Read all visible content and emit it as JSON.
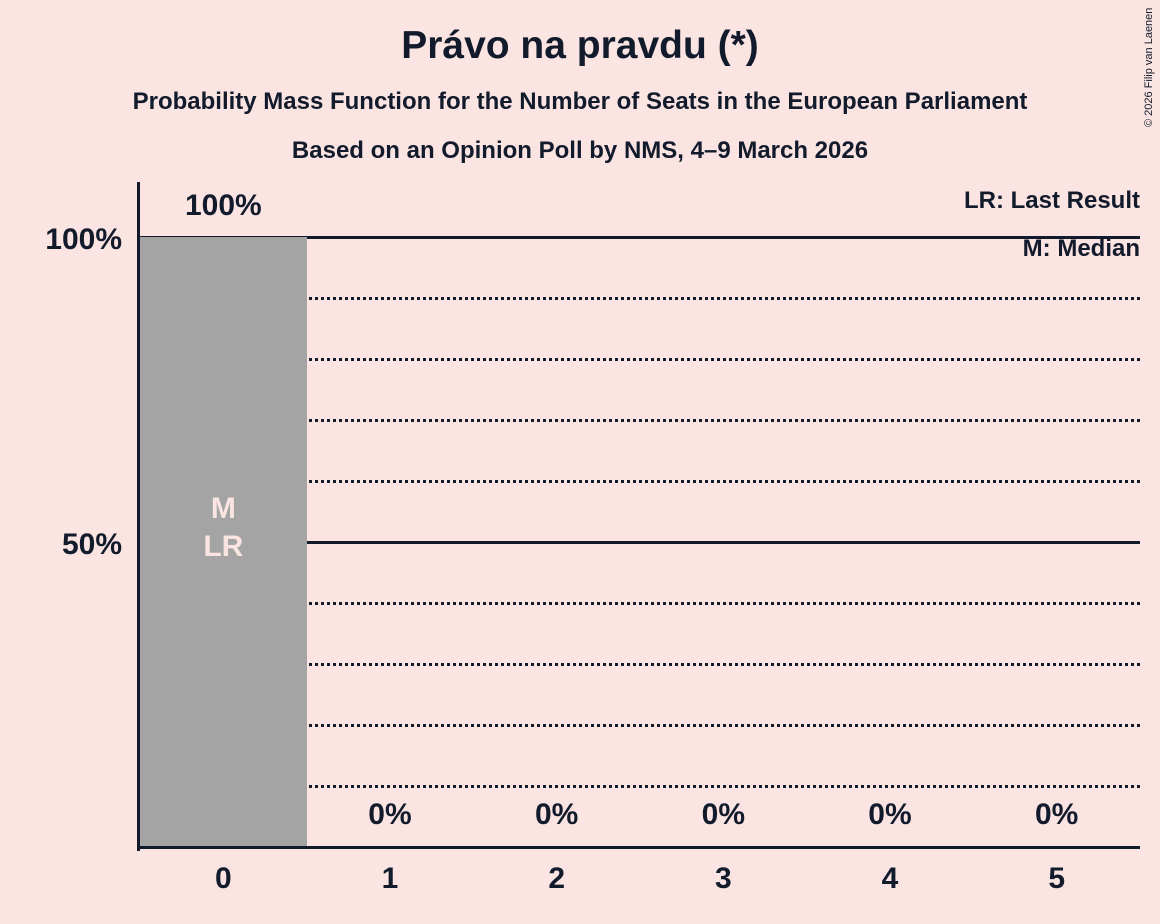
{
  "copyright": "© 2026 Filip van Laenen",
  "chart_data": {
    "type": "bar",
    "title": "Právo na pravdu (*)",
    "subtitle": "Probability Mass Function for the Number of Seats in the European Parliament",
    "subtitle2": "Based on an Opinion Poll by NMS, 4–9 March 2026",
    "xlabel": "",
    "ylabel": "",
    "categories": [
      "0",
      "1",
      "2",
      "3",
      "4",
      "5"
    ],
    "values": [
      100,
      0,
      0,
      0,
      0,
      0
    ],
    "value_labels": [
      "100%",
      "0%",
      "0%",
      "0%",
      "0%",
      "0%"
    ],
    "bar_annotations": [
      [
        "M",
        "LR"
      ],
      [],
      [],
      [],
      [],
      []
    ],
    "median_seats": "0",
    "last_result_seats": "0",
    "ylim": [
      0,
      100
    ],
    "yticks": [
      {
        "level": 100,
        "label": "100%"
      },
      {
        "level": 50,
        "label": "50%"
      }
    ],
    "gridlines": [
      {
        "level": 100,
        "style": "solid"
      },
      {
        "level": 90,
        "style": "dotted"
      },
      {
        "level": 80,
        "style": "dotted"
      },
      {
        "level": 70,
        "style": "dotted"
      },
      {
        "level": 60,
        "style": "dotted"
      },
      {
        "level": 50,
        "style": "solid"
      },
      {
        "level": 40,
        "style": "dotted"
      },
      {
        "level": 30,
        "style": "dotted"
      },
      {
        "level": 20,
        "style": "dotted"
      },
      {
        "level": 10,
        "style": "dotted"
      }
    ],
    "legend": [
      "LR: Last Result",
      "M: Median"
    ],
    "legend_position": "top-right",
    "grid": true,
    "colors": {
      "background": "#fce4e2",
      "bar": "#a4a4a4",
      "text": "#121b2b",
      "bar_label": "#fce4e2"
    }
  }
}
